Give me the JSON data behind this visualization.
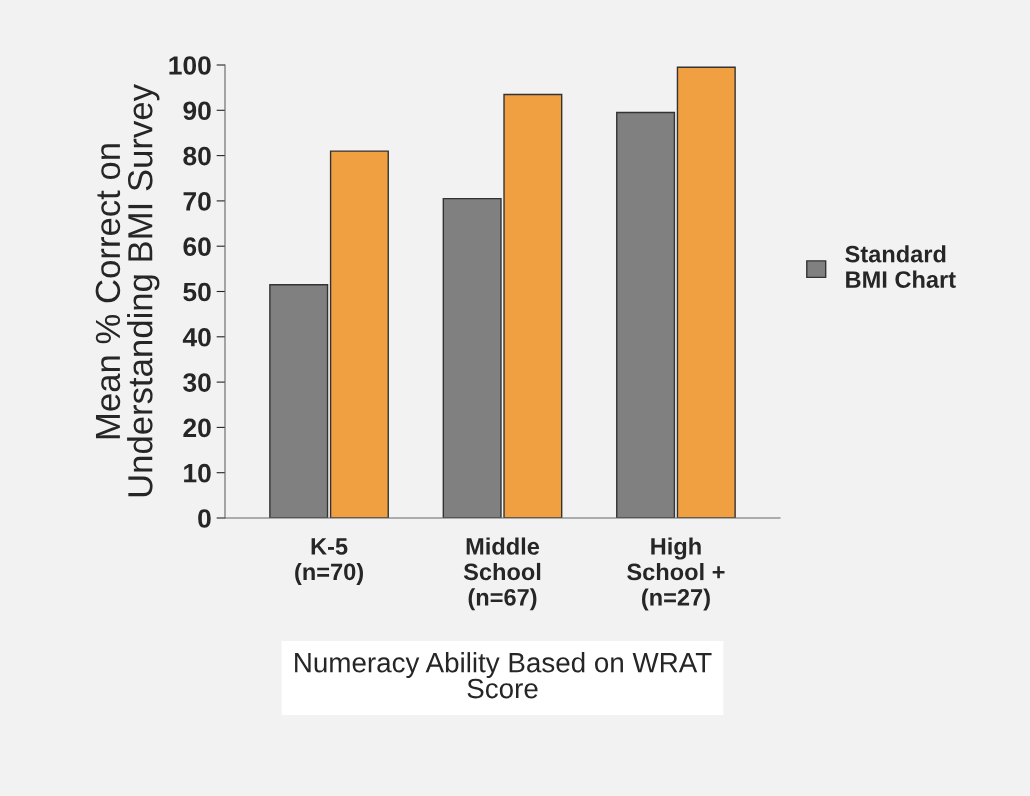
{
  "chart_data": {
    "type": "bar",
    "xlabel": "Numeracy Ability Based on WRAT\nScore",
    "ylabel": "Mean % Correct on\nUnderstanding BMI Survey",
    "categories": [
      "K-5\n(n=70)",
      "Middle\nSchool\n(n=67)",
      "High\nSchool +\n(n=27)"
    ],
    "series": [
      {
        "name": "Standard\nBMI Chart",
        "color": "#808080",
        "values": [
          51.5,
          70.5,
          89.5
        ]
      },
      {
        "color": "#f0a040",
        "values": [
          81,
          93.5,
          99.5
        ]
      }
    ],
    "ylim": [
      0,
      100
    ],
    "yticks": [
      0,
      10,
      20,
      30,
      40,
      50,
      60,
      70,
      80,
      90,
      100
    ],
    "grid": false,
    "legend": "right"
  }
}
